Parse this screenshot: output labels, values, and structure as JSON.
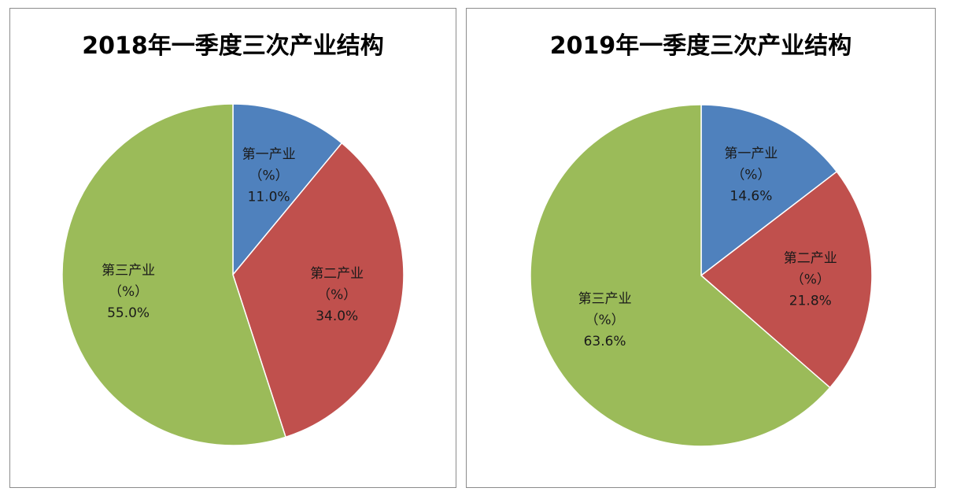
{
  "chart_data": [
    {
      "type": "pie",
      "title": "2018年一季度三次产业结构",
      "slices": [
        {
          "name": "第一产业",
          "unit": "（%）",
          "value": 11.0,
          "label": "11.0%",
          "color": "#4f81bd"
        },
        {
          "name": "第二产业",
          "unit": "（%）",
          "value": 34.0,
          "label": "34.0%",
          "color": "#c0504d"
        },
        {
          "name": "第三产业",
          "unit": "（%）",
          "value": 55.0,
          "label": "55.0%",
          "color": "#9bbb59"
        }
      ],
      "start_angle_deg": 0,
      "direction": "clockwise",
      "legend": "none"
    },
    {
      "type": "pie",
      "title": "2019年一季度三次产业结构",
      "slices": [
        {
          "name": "第一产业",
          "unit": "（%）",
          "value": 14.6,
          "label": "14.6%",
          "color": "#4f81bd"
        },
        {
          "name": "第二产业",
          "unit": "（%）",
          "value": 21.8,
          "label": "21.8%",
          "color": "#c0504d"
        },
        {
          "name": "第三产业",
          "unit": "（%）",
          "value": 63.6,
          "label": "63.6%",
          "color": "#9bbb59"
        }
      ],
      "start_angle_deg": 0,
      "direction": "clockwise",
      "legend": "none"
    }
  ]
}
